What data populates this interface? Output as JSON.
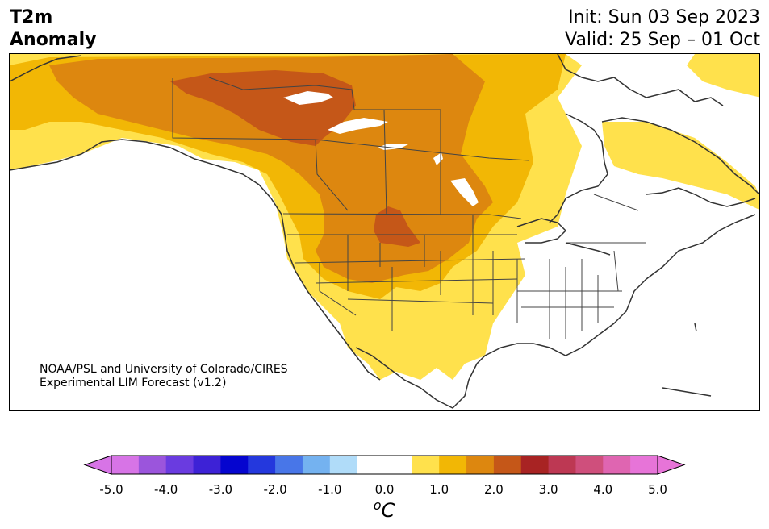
{
  "title": {
    "line1": "T2m",
    "line2": "Anomaly"
  },
  "dates": {
    "init": "Init: Sun 03 Sep 2023",
    "valid": "Valid: 25 Sep – 01 Oct"
  },
  "credit": {
    "line1": "NOAA/PSL and University of Colorado/CIRES",
    "line2": "Experimental LIM Forecast (v1.2)"
  },
  "colorbar": {
    "ticks": [
      "-5.0",
      "-4.0",
      "-3.0",
      "-2.0",
      "-1.0",
      "0.0",
      "1.0",
      "2.0",
      "3.0",
      "4.0",
      "5.0"
    ],
    "unit_prefix": "o",
    "unit_symbol": "C",
    "under_color": "#d774e6",
    "over_color": "#e774d8",
    "colors": [
      "#d774e6",
      "#9b55dc",
      "#6a3be0",
      "#3d22d6",
      "#0505cf",
      "#2438dd",
      "#4876e8",
      "#74b2f0",
      "#b0dcf9",
      "#ffffff",
      "#ffffff",
      "#ffe14c",
      "#f2b705",
      "#dd870f",
      "#c55718",
      "#a82323",
      "#bd3853",
      "#cf4f7c",
      "#df65b1",
      "#e774d8"
    ]
  },
  "map": {
    "colors": {
      "ocean": "#ffffff",
      "light_warm": "#ffe14c",
      "warm": "#f2b705",
      "warmer": "#dd870f",
      "hottest": "#c55718",
      "coast": "#333333"
    }
  }
}
